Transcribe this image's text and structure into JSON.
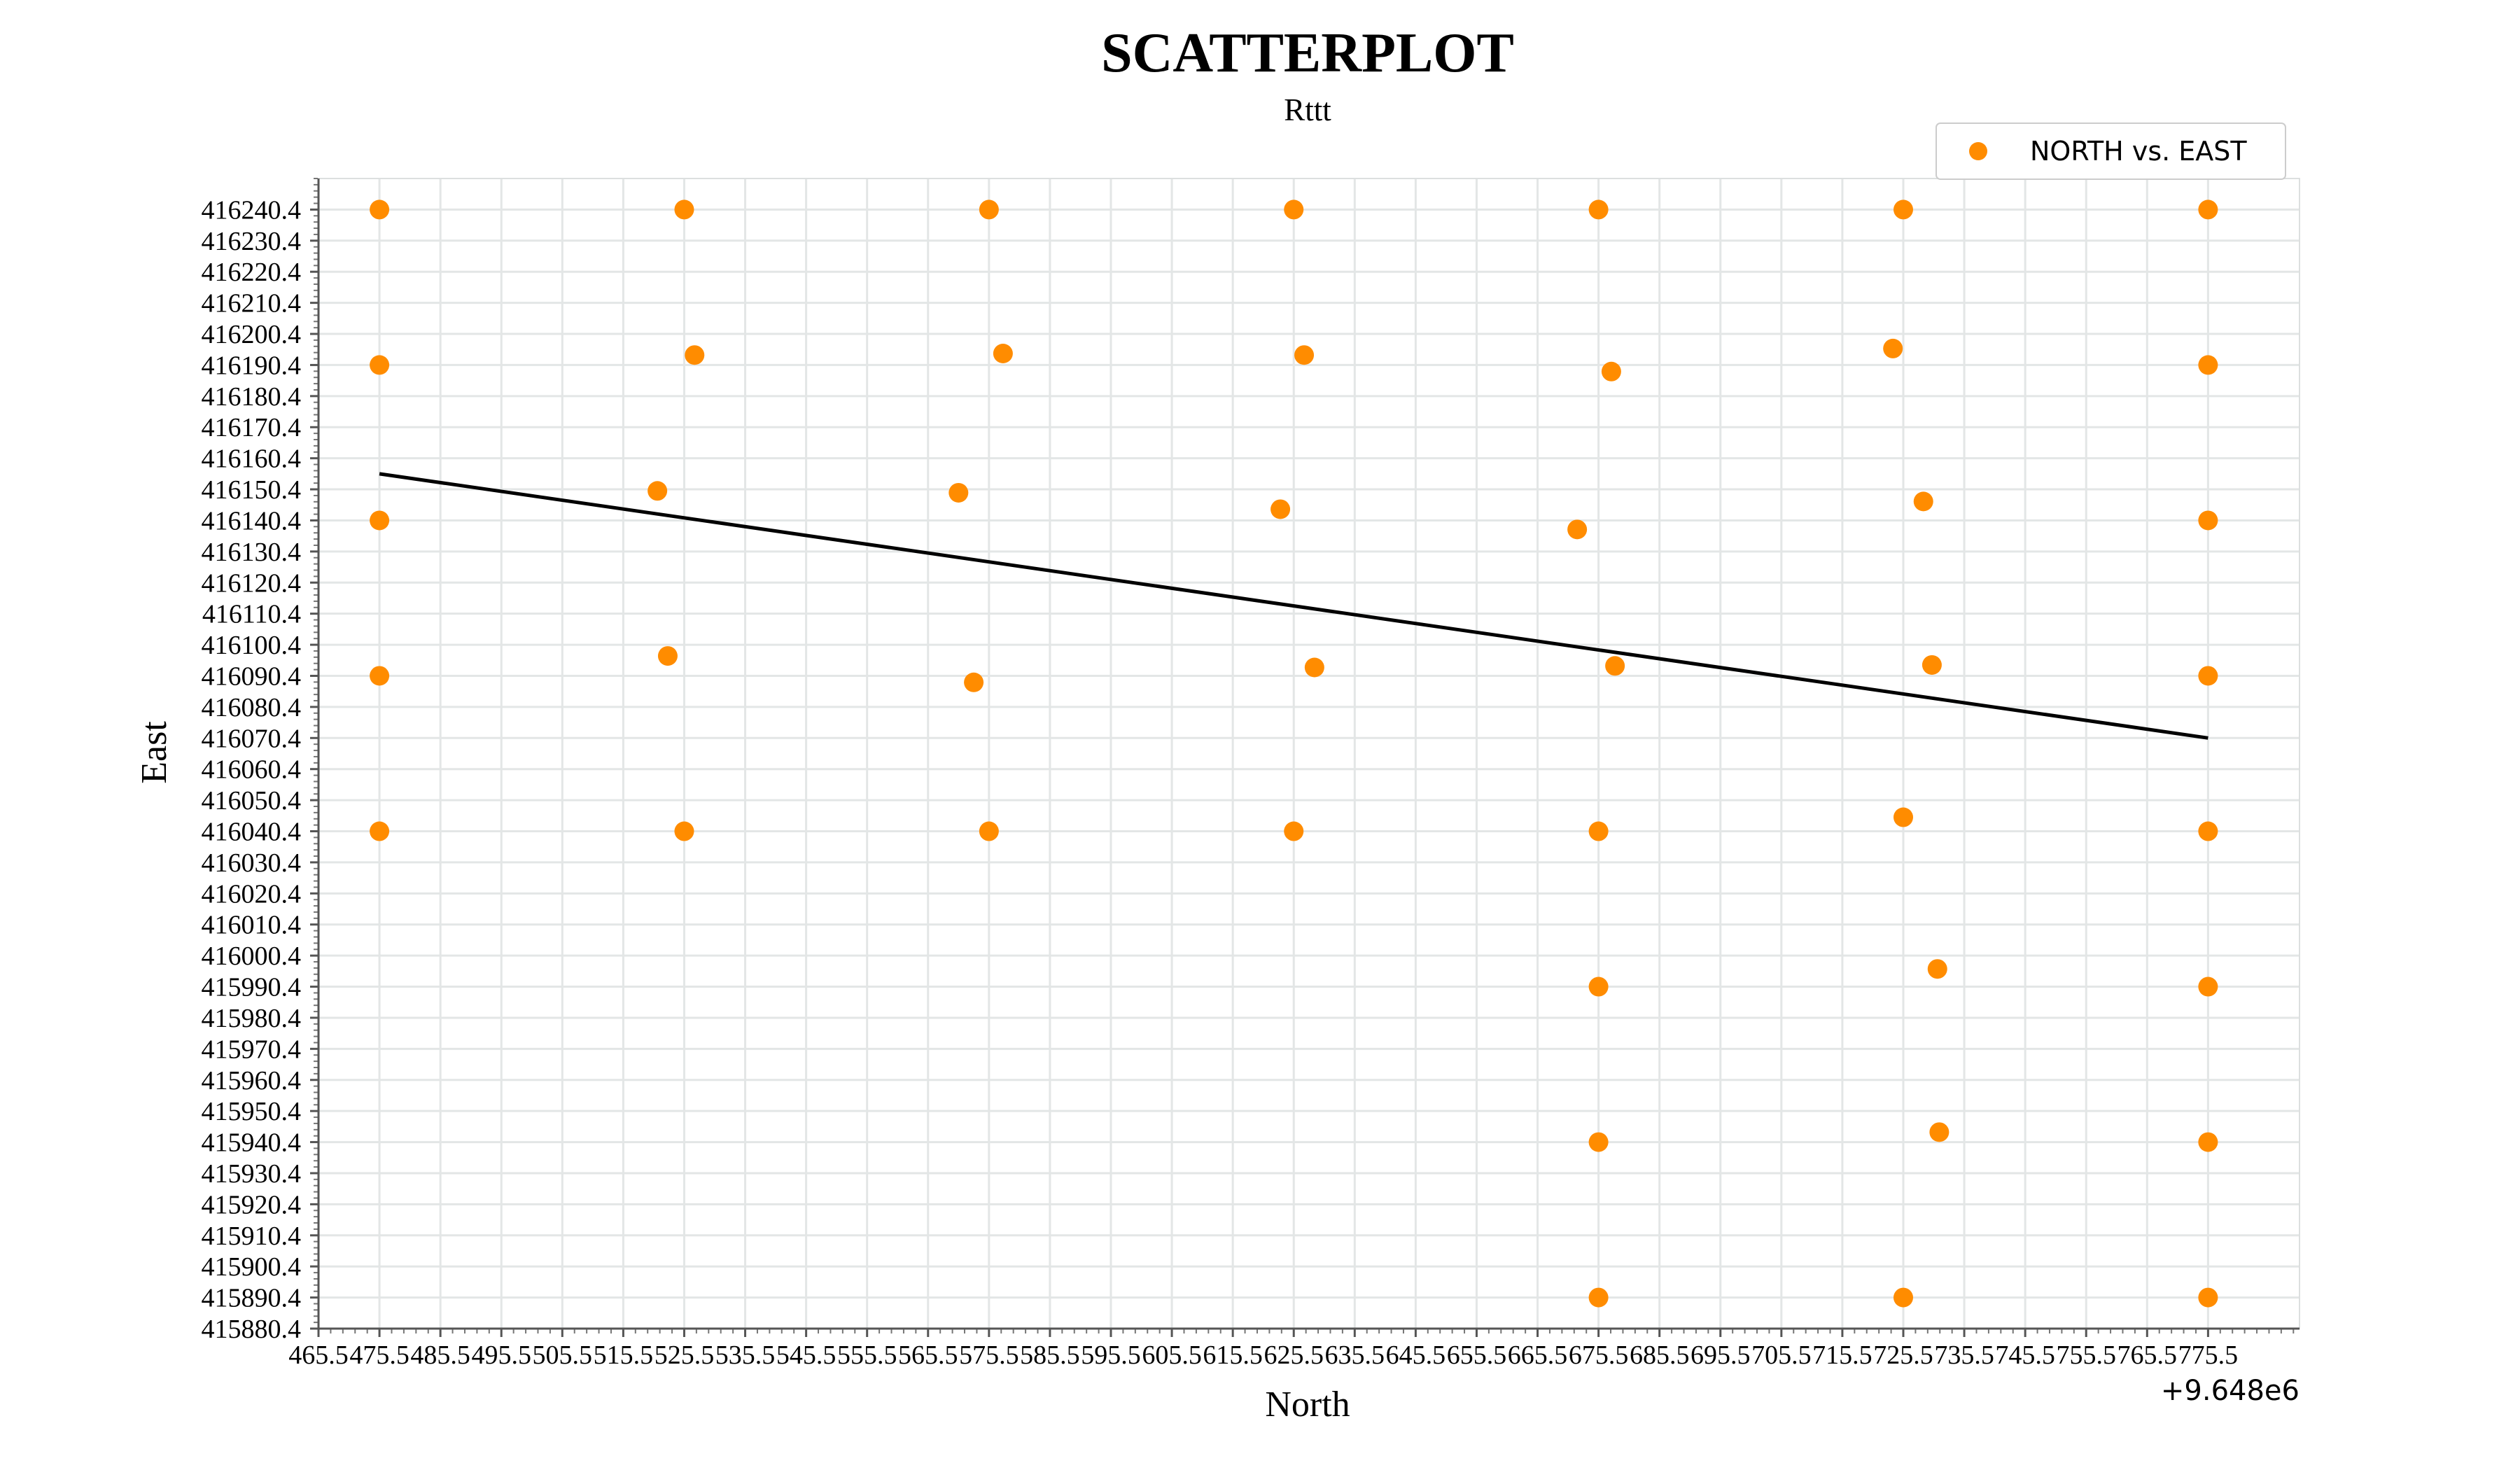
{
  "chart_data": {
    "type": "scatter",
    "title": "SCATTERPLOT",
    "subtitle": "Rttt",
    "xlabel": "North",
    "ylabel": "East",
    "x_offset_label": "+9.648e6",
    "legend": {
      "label": "NORTH vs. EAST",
      "placement": "top-right"
    },
    "colors": {
      "points": "#ff8c00",
      "trend": "#000000",
      "grid": "#e3e6e6",
      "axis": "#555555"
    },
    "grid": true,
    "xlim": [
      9648465.5,
      9648790.5
    ],
    "ylim": [
      415880.4,
      416250.4
    ],
    "x_tick_values": [
      9648465.5,
      9648475.5,
      9648485.5,
      9648495.5,
      9648505.5,
      9648515.5,
      9648525.5,
      9648535.5,
      9648545.5,
      9648555.5,
      9648565.5,
      9648575.5,
      9648585.5,
      9648595.5,
      9648605.5,
      9648615.5,
      9648625.5,
      9648635.5,
      9648645.5,
      9648655.5,
      9648665.5,
      9648675.5,
      9648685.5,
      9648695.5,
      9648705.5,
      9648715.5,
      9648725.5,
      9648735.5,
      9648745.5,
      9648755.5,
      9648765.5,
      9648775.5
    ],
    "x_tick_labels": [
      "465.5",
      "475.5",
      "485.5",
      "495.5",
      "505.5",
      "515.5",
      "525.5",
      "535.5",
      "545.5",
      "555.5",
      "565.5",
      "575.5",
      "585.5",
      "595.5",
      "605.5",
      "615.5",
      "625.5",
      "635.5",
      "645.5",
      "655.5",
      "665.5",
      "675.5",
      "685.5",
      "695.5",
      "705.5",
      "715.5",
      "725.5",
      "735.5",
      "745.5",
      "755.5",
      "765.5",
      "775.5"
    ],
    "y_tick_labels": [
      "415880.4",
      "415890.4",
      "415900.4",
      "415910.4",
      "415920.4",
      "415930.4",
      "415940.4",
      "415950.4",
      "415960.4",
      "415970.4",
      "415980.4",
      "415990.4",
      "416000.4",
      "416010.4",
      "416020.4",
      "416030.4",
      "416040.4",
      "416050.4",
      "416060.4",
      "416070.4",
      "416080.4",
      "416090.4",
      "416100.4",
      "416110.4",
      "416120.4",
      "416130.4",
      "416140.4",
      "416150.4",
      "416160.4",
      "416170.4",
      "416180.4",
      "416190.4",
      "416200.4",
      "416210.4",
      "416220.4",
      "416230.4",
      "416240.4"
    ],
    "points": [
      {
        "x": 9648475.5,
        "y": 416240.4
      },
      {
        "x": 9648525.5,
        "y": 416240.4
      },
      {
        "x": 9648575.5,
        "y": 416240.4
      },
      {
        "x": 9648625.5,
        "y": 416240.4
      },
      {
        "x": 9648675.5,
        "y": 416240.4
      },
      {
        "x": 9648725.5,
        "y": 416240.4
      },
      {
        "x": 9648775.5,
        "y": 416240.4
      },
      {
        "x": 9648475.5,
        "y": 416190.4
      },
      {
        "x": 9648527.2,
        "y": 416193.6
      },
      {
        "x": 9648577.8,
        "y": 416194.1
      },
      {
        "x": 9648627.2,
        "y": 416193.6
      },
      {
        "x": 9648677.6,
        "y": 416188.3
      },
      {
        "x": 9648723.8,
        "y": 416195.7
      },
      {
        "x": 9648775.5,
        "y": 416190.4
      },
      {
        "x": 9648521.1,
        "y": 416149.9
      },
      {
        "x": 9648570.5,
        "y": 416149.3
      },
      {
        "x": 9648623.3,
        "y": 416144.0
      },
      {
        "x": 9648672.0,
        "y": 416137.5
      },
      {
        "x": 9648728.8,
        "y": 416146.5
      },
      {
        "x": 9648475.5,
        "y": 416140.4
      },
      {
        "x": 9648775.5,
        "y": 416140.4
      },
      {
        "x": 9648522.8,
        "y": 416096.8
      },
      {
        "x": 9648573.0,
        "y": 416088.3
      },
      {
        "x": 9648628.9,
        "y": 416093.1
      },
      {
        "x": 9648678.2,
        "y": 416093.6
      },
      {
        "x": 9648730.2,
        "y": 416093.9
      },
      {
        "x": 9648475.5,
        "y": 416090.4
      },
      {
        "x": 9648775.5,
        "y": 416090.4
      },
      {
        "x": 9648475.5,
        "y": 416040.4
      },
      {
        "x": 9648525.5,
        "y": 416040.4
      },
      {
        "x": 9648575.5,
        "y": 416040.4
      },
      {
        "x": 9648625.5,
        "y": 416040.4
      },
      {
        "x": 9648675.5,
        "y": 416040.4
      },
      {
        "x": 9648725.5,
        "y": 416044.9
      },
      {
        "x": 9648775.5,
        "y": 416040.4
      },
      {
        "x": 9648675.5,
        "y": 415990.4
      },
      {
        "x": 9648731.1,
        "y": 415996.1
      },
      {
        "x": 9648775.5,
        "y": 415990.4
      },
      {
        "x": 9648675.5,
        "y": 415940.4
      },
      {
        "x": 9648731.4,
        "y": 415943.6
      },
      {
        "x": 9648775.5,
        "y": 415940.4
      },
      {
        "x": 9648675.5,
        "y": 415890.4
      },
      {
        "x": 9648725.5,
        "y": 415890.4
      },
      {
        "x": 9648775.5,
        "y": 415890.4
      }
    ],
    "trend_line": {
      "x": [
        9648475.5,
        9648775.5
      ],
      "y": [
        416155.4,
        416070.4
      ]
    }
  }
}
